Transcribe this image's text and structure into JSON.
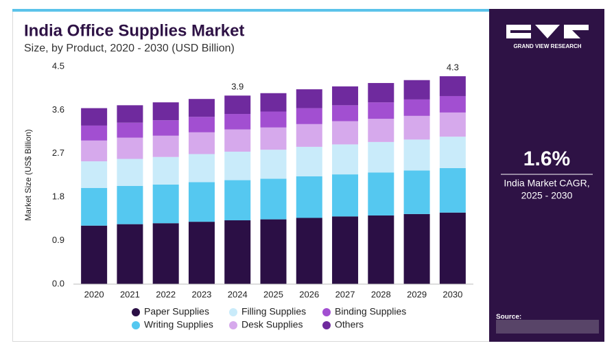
{
  "chart_data": {
    "type": "stacked_bar",
    "title": "India Office Supplies Market",
    "subtitle": "Size, by Product, 2020 - 2030 (USD Billion)",
    "y_label": "Market Size (US$ Billion)",
    "categories": [
      "2020",
      "2021",
      "2022",
      "2023",
      "2024",
      "2025",
      "2026",
      "2027",
      "2028",
      "2029",
      "2030"
    ],
    "series": [
      {
        "name": "Paper Supplies",
        "color": "#2b0f45",
        "values": [
          1.21,
          1.24,
          1.26,
          1.29,
          1.32,
          1.34,
          1.37,
          1.4,
          1.42,
          1.45,
          1.48
        ]
      },
      {
        "name": "Writing Supplies",
        "color": "#55c8f0",
        "values": [
          0.78,
          0.79,
          0.8,
          0.82,
          0.83,
          0.84,
          0.86,
          0.87,
          0.89,
          0.9,
          0.92
        ]
      },
      {
        "name": "Filling Supplies",
        "color": "#c9ebfa",
        "values": [
          0.55,
          0.56,
          0.57,
          0.58,
          0.59,
          0.6,
          0.61,
          0.62,
          0.63,
          0.64,
          0.65
        ]
      },
      {
        "name": "Desk Supplies",
        "color": "#d6a9ec",
        "values": [
          0.43,
          0.44,
          0.44,
          0.45,
          0.46,
          0.46,
          0.47,
          0.48,
          0.48,
          0.49,
          0.5
        ]
      },
      {
        "name": "Binding Supplies",
        "color": "#a24fd1",
        "values": [
          0.31,
          0.31,
          0.32,
          0.32,
          0.32,
          0.33,
          0.33,
          0.33,
          0.34,
          0.34,
          0.34
        ]
      },
      {
        "name": "Others",
        "color": "#6f2a9e",
        "values": [
          0.36,
          0.36,
          0.37,
          0.37,
          0.38,
          0.38,
          0.39,
          0.39,
          0.4,
          0.4,
          0.41
        ]
      }
    ],
    "totals": [
      null,
      null,
      null,
      null,
      3.9,
      null,
      null,
      null,
      null,
      null,
      4.3
    ],
    "ylim": [
      0,
      4.5
    ],
    "yticks": [
      {
        "value": 0,
        "label": "0.0"
      },
      0.9,
      1.8,
      2.7,
      3.6,
      4.5
    ],
    "grid": false
  },
  "sidebar": {
    "brand": "GRAND VIEW RESEARCH",
    "cagr": "1.6%",
    "cagr_label": "India Market CAGR,",
    "cagr_period": "2025 - 2030",
    "source": "Source:"
  }
}
